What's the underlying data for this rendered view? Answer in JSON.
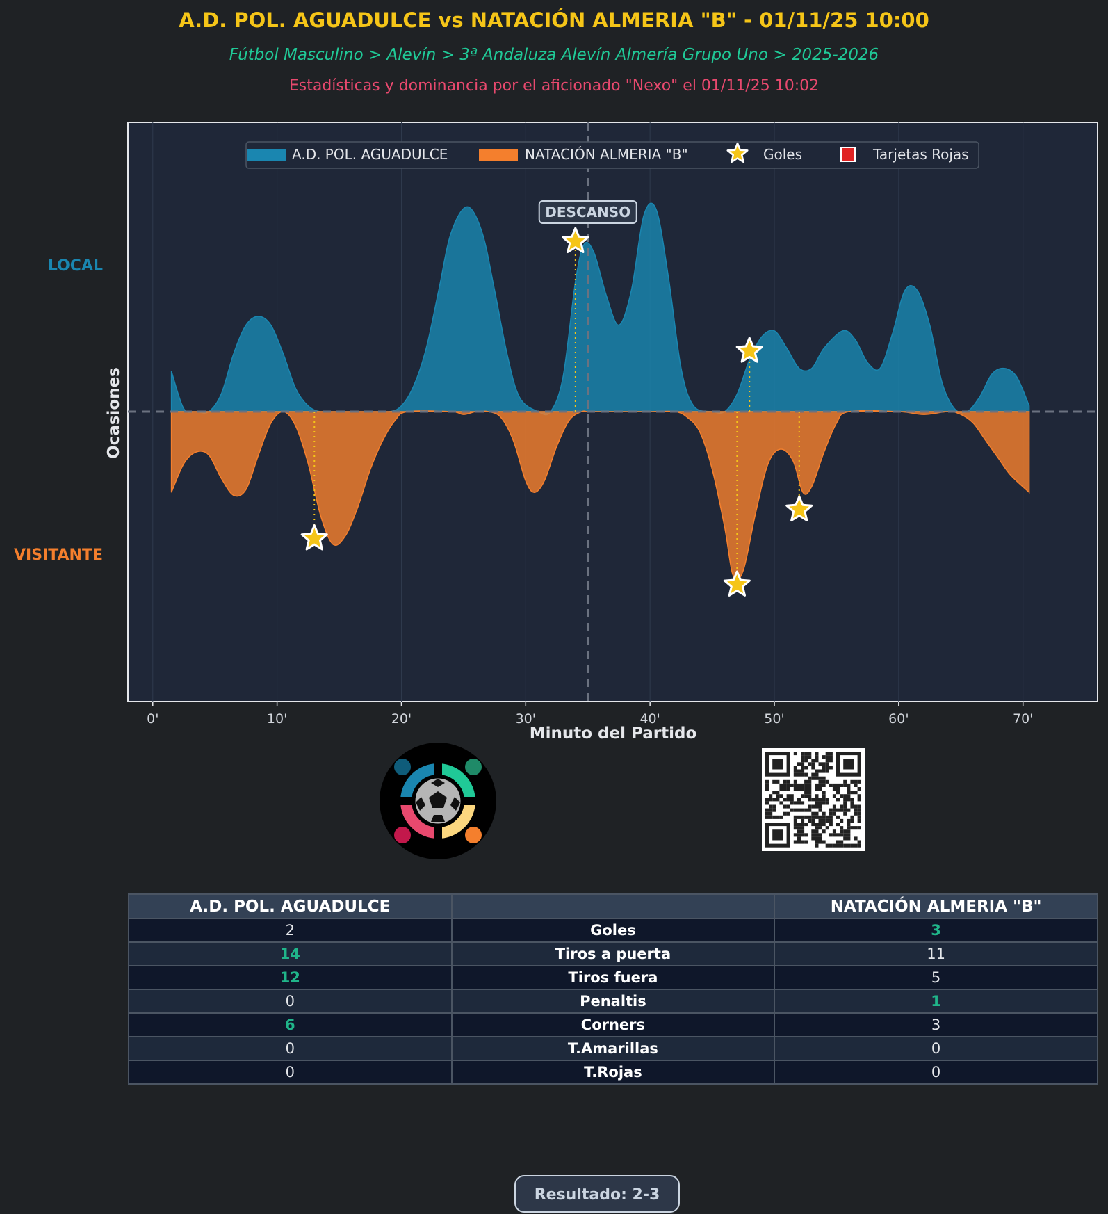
{
  "header": {
    "title": "A.D. POL. AGUADULCE vs NATACIÓN ALMERIA \"B\" - 01/11/25 10:00",
    "subtitle": "Fútbol Masculino > Alevín > 3ª Andaluza Alevín Almería Grupo Uno > 2025-2026",
    "credit": "Estadísticas y dominancia por el aficionado \"Nexo\" el 01/11/25 10:02"
  },
  "side_labels": {
    "local": "LOCAL",
    "visitante": "VISITANTE"
  },
  "colors": {
    "local": "#1a86b0",
    "visitante": "#f47f2d",
    "goal": "#f5c518",
    "red_card": "#e02424",
    "background": "#1f2225",
    "plot_bg": "#1f2738"
  },
  "chart_data": {
    "type": "area",
    "title": "",
    "xlabel": "Minuto del Partido",
    "ylabel": "Ocasiones",
    "xlim": [
      -2,
      76
    ],
    "ylim": [
      -1,
      1
    ],
    "x_ticks": [
      0,
      10,
      20,
      30,
      40,
      50,
      60,
      70
    ],
    "x_tick_labels": [
      "0'",
      "10'",
      "20'",
      "30'",
      "40'",
      "50'",
      "60'",
      "70'"
    ],
    "halftime": {
      "minute": 35,
      "label": "DESCANSO"
    },
    "legend": {
      "position": "top-center",
      "items": [
        "A.D. POL. AGUADULCE",
        "NATACIÓN ALMERIA \"B\"",
        "Goles",
        "Tarjetas Rojas"
      ]
    },
    "series": [
      {
        "name": "A.D. POL. AGUADULCE",
        "side": "local",
        "minutes": [
          1.5,
          2.5,
          3.5,
          4.5,
          5.5,
          6.5,
          7.5,
          8.5,
          9.5,
          10.5,
          11.5,
          12.5,
          13.5,
          15,
          17,
          19,
          20,
          21,
          22,
          23,
          24,
          25.3,
          26.5,
          27.5,
          28.5,
          29.5,
          31,
          32,
          33,
          34,
          34.7,
          35.5,
          36.5,
          37.5,
          38.5,
          39.5,
          40.5,
          41.5,
          42.5,
          43.5,
          45,
          46,
          47,
          48,
          49,
          50,
          51,
          52,
          53,
          54,
          55.5,
          56.5,
          57.5,
          58.5,
          59.5,
          60.5,
          61.5,
          62.5,
          63.5,
          64.5,
          65.5,
          66.5,
          67.5,
          68.5,
          69.5,
          70.5
        ],
        "values": [
          0.14,
          0.01,
          0.0,
          0.0,
          0.06,
          0.2,
          0.3,
          0.33,
          0.3,
          0.2,
          0.08,
          0.02,
          0.0,
          0.0,
          0.0,
          0.0,
          0.02,
          0.09,
          0.22,
          0.42,
          0.62,
          0.71,
          0.62,
          0.42,
          0.2,
          0.05,
          0.0,
          0.0,
          0.12,
          0.45,
          0.58,
          0.55,
          0.4,
          0.3,
          0.42,
          0.68,
          0.7,
          0.46,
          0.15,
          0.02,
          0.0,
          0.0,
          0.06,
          0.18,
          0.26,
          0.28,
          0.22,
          0.15,
          0.15,
          0.22,
          0.28,
          0.25,
          0.17,
          0.15,
          0.27,
          0.42,
          0.42,
          0.3,
          0.1,
          0.01,
          0.0,
          0.05,
          0.13,
          0.15,
          0.12,
          0.02
        ]
      },
      {
        "name": "NATACIÓN ALMERIA \"B\"",
        "side": "visitante",
        "minutes": [
          1.5,
          2.5,
          3.5,
          4.5,
          5.5,
          6.5,
          7.5,
          8.5,
          9.5,
          10.5,
          11.5,
          12.5,
          13.5,
          14.5,
          15.5,
          16.5,
          17.5,
          18.5,
          19.5,
          20.5,
          24,
          25,
          26,
          27,
          28,
          29,
          30,
          30.7,
          31.5,
          32.5,
          33.5,
          34.5,
          35,
          36,
          40,
          42,
          43,
          44,
          45,
          46,
          46.7,
          47.5,
          48.5,
          49.5,
          50.5,
          51.5,
          52.3,
          53,
          54,
          55,
          56,
          60,
          62,
          64,
          65,
          66,
          67,
          68,
          69,
          70.5
        ],
        "values": [
          -0.28,
          -0.18,
          -0.14,
          -0.15,
          -0.23,
          -0.29,
          -0.27,
          -0.15,
          -0.04,
          0.0,
          -0.05,
          -0.18,
          -0.36,
          -0.46,
          -0.43,
          -0.33,
          -0.2,
          -0.1,
          -0.03,
          0.0,
          0.0,
          -0.01,
          0.0,
          0.0,
          -0.02,
          -0.1,
          -0.24,
          -0.28,
          -0.24,
          -0.12,
          -0.03,
          0.0,
          0.0,
          0.0,
          0.0,
          0.0,
          -0.02,
          -0.07,
          -0.2,
          -0.4,
          -0.57,
          -0.55,
          -0.35,
          -0.18,
          -0.13,
          -0.17,
          -0.28,
          -0.26,
          -0.14,
          -0.04,
          0.0,
          0.0,
          -0.01,
          0.0,
          -0.01,
          -0.04,
          -0.1,
          -0.16,
          -0.22,
          -0.28
        ]
      }
    ],
    "goals": [
      {
        "team": "local",
        "minute": 34,
        "value": 0.59
      },
      {
        "team": "local",
        "minute": 48,
        "value": 0.21
      },
      {
        "team": "visitante",
        "minute": 13,
        "value": -0.44
      },
      {
        "team": "visitante",
        "minute": 47,
        "value": -0.6
      },
      {
        "team": "visitante",
        "minute": 52,
        "value": -0.34
      }
    ],
    "red_cards": []
  },
  "stats_table": {
    "home_team": "A.D. POL. AGUADULCE",
    "away_team": "NATACIÓN ALMERIA \"B\"",
    "middle_header": "",
    "rows": [
      {
        "metric": "Goles",
        "home": "2",
        "away": "3",
        "winner": "away"
      },
      {
        "metric": "Tiros a puerta",
        "home": "14",
        "away": "11",
        "winner": "home"
      },
      {
        "metric": "Tiros fuera",
        "home": "12",
        "away": "5",
        "winner": "home"
      },
      {
        "metric": "Penaltis",
        "home": "0",
        "away": "1",
        "winner": "away"
      },
      {
        "metric": "Corners",
        "home": "6",
        "away": "3",
        "winner": "home"
      },
      {
        "metric": "T.Amarillas",
        "home": "0",
        "away": "0",
        "winner": "none"
      },
      {
        "metric": "T.Rojas",
        "home": "0",
        "away": "0",
        "winner": "none"
      }
    ]
  },
  "result": "Resultado: 2-3"
}
